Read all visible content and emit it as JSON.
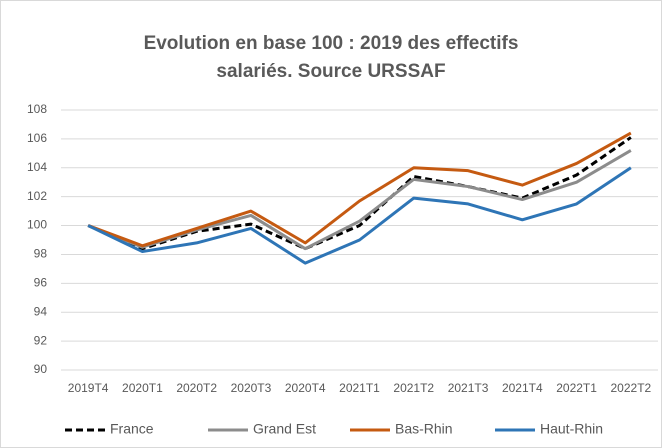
{
  "chart_data": {
    "type": "line",
    "title": "Evolution en base 100 : 2019 des effectifs salariés. Source URSSAF",
    "categories": [
      "2019T4",
      "2020T1",
      "2020T2",
      "2020T3",
      "2020T4",
      "2021T1",
      "2021T2",
      "2021T3",
      "2021T4",
      "2022T1",
      "2022T2"
    ],
    "series": [
      {
        "name": "France",
        "color": "#000000",
        "dashed": true,
        "values": [
          100,
          98.4,
          99.6,
          100.1,
          98.4,
          100.0,
          103.4,
          102.7,
          101.9,
          103.5,
          106.1
        ]
      },
      {
        "name": "Grand Est",
        "color": "#8c8c8c",
        "values": [
          100,
          98.5,
          99.7,
          100.7,
          98.4,
          100.3,
          103.2,
          102.7,
          101.8,
          103.0,
          105.2
        ]
      },
      {
        "name": "Bas-Rhin",
        "color": "#c55a11",
        "values": [
          100,
          98.6,
          99.8,
          101.0,
          98.8,
          101.7,
          104.0,
          103.8,
          102.8,
          104.3,
          106.4
        ]
      },
      {
        "name": "Haut-Rhin",
        "color": "#2e75b6",
        "values": [
          100,
          98.2,
          98.8,
          99.8,
          97.4,
          99.0,
          101.9,
          101.5,
          100.4,
          101.5,
          104.0
        ]
      }
    ],
    "ylim": [
      90,
      108
    ],
    "yticks": [
      90,
      92,
      94,
      96,
      98,
      100,
      102,
      104,
      106,
      108
    ],
    "grid": true,
    "legend": "bottom"
  }
}
